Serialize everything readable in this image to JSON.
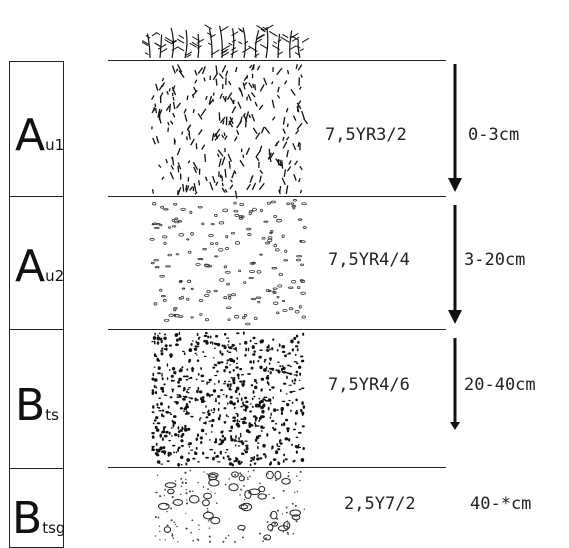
{
  "horizons": [
    {
      "main": "A",
      "sub": "u1",
      "color": "7,5YR3/2",
      "depth": "0-3cm"
    },
    {
      "main": "A",
      "sub": "u2",
      "color": "7,5YR4/4",
      "depth": "3-20cm"
    },
    {
      "main": "B",
      "sub": "ts",
      "color": "7,5YR4/6",
      "depth": "20-40cm"
    },
    {
      "main": "B",
      "sub": "tsg",
      "color": "2,5Y7/2",
      "depth": "40-*cm"
    }
  ]
}
